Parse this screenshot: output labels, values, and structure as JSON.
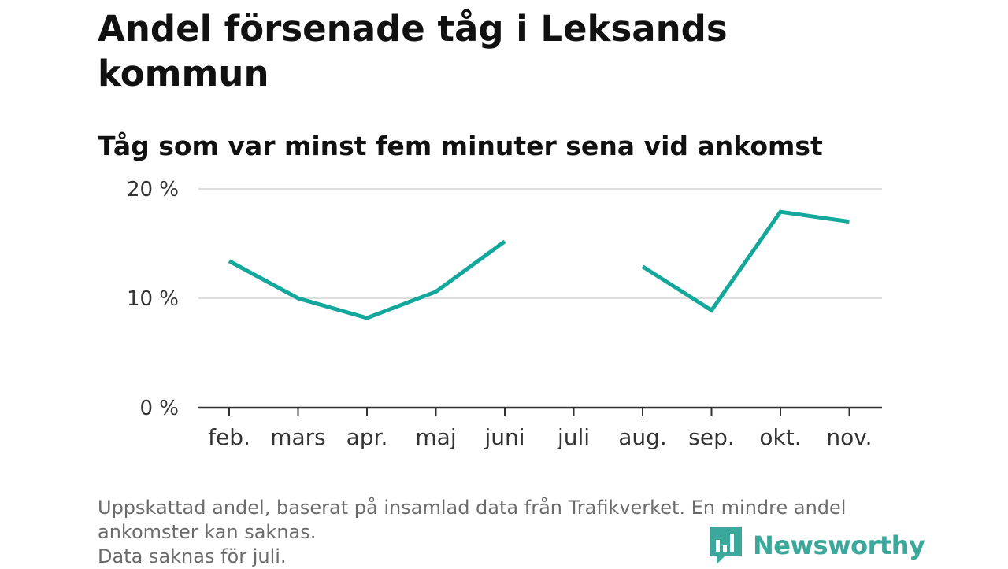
{
  "chart_data": {
    "type": "line",
    "title": "Andel försenade tåg i Leksands kommun",
    "subtitle": "Tåg som var minst fem minuter sena vid ankomst",
    "categories": [
      "feb.",
      "mars",
      "apr.",
      "maj",
      "juni",
      "juli",
      "aug.",
      "sep.",
      "okt.",
      "nov."
    ],
    "values": [
      13.4,
      10.0,
      8.2,
      10.6,
      15.2,
      null,
      12.9,
      8.9,
      17.9,
      17.0
    ],
    "ylim": [
      0,
      20
    ],
    "yticks": [
      0,
      10,
      20
    ],
    "ytick_labels": [
      "0 %",
      "10 %",
      "20 %"
    ],
    "grid": true,
    "line_color": "#14a79c",
    "grid_color": "#dedede",
    "axis_color": "#333333"
  },
  "footer": {
    "line1": "Uppskattad andel, baserat på insamlad data från Trafikverket. En mindre andel",
    "line2": "ankomster kan saknas.",
    "line3": "Data saknas för juli."
  },
  "brand": {
    "name": "Newsworthy",
    "color": "#3aa89a",
    "icon": "bar-chart-speech-icon"
  }
}
